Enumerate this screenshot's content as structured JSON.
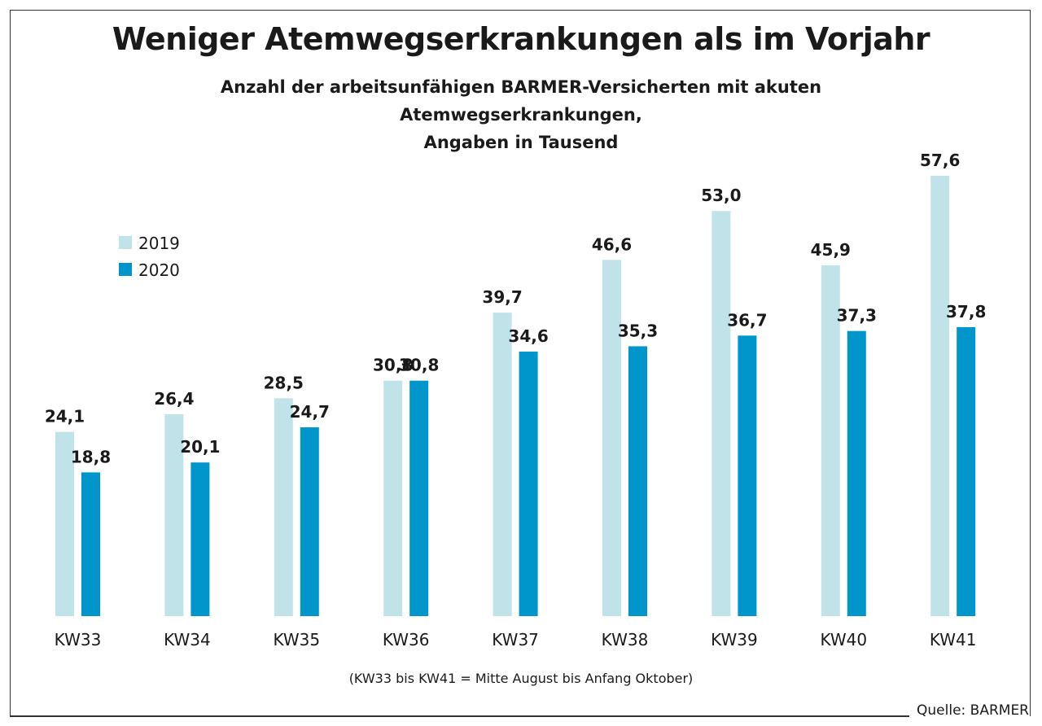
{
  "header": {
    "title": "Weniger Atemwegserkrankungen als im Vorjahr",
    "subtitle_line1": "Anzahl der arbeitsunfähigen BARMER-Versicherten mit akuten Atemwegserkrankungen,",
    "subtitle_line2": "Angaben in Tausend"
  },
  "footer": {
    "note": "(KW33 bis KW41 = Mitte August bis Anfang Oktober)",
    "source": "Quelle: BARMER"
  },
  "chart_data": {
    "type": "bar",
    "title": "Weniger Atemwegserkrankungen als im Vorjahr",
    "subtitle": "Anzahl der arbeitsunfähigen BARMER-Versicherten mit akuten Atemwegserkrankungen, Angaben in Tausend",
    "categories": [
      "KW33",
      "KW34",
      "KW35",
      "KW36",
      "KW37",
      "KW38",
      "KW39",
      "KW40",
      "KW41"
    ],
    "series": [
      {
        "name": "2019",
        "color": "#bfe3e8",
        "values": [
          24.1,
          26.4,
          28.5,
          30.8,
          39.7,
          46.6,
          53.0,
          45.9,
          57.6
        ],
        "labels": [
          "24,1",
          "26,4",
          "28,5",
          "30,8",
          "39,7",
          "46,6",
          "53,0",
          "45,9",
          "57,6"
        ]
      },
      {
        "name": "2020",
        "color": "#0096cc",
        "values": [
          18.8,
          20.1,
          24.7,
          30.8,
          34.6,
          35.3,
          36.7,
          37.3,
          37.8
        ],
        "labels": [
          "18,8",
          "20,1",
          "24,7",
          "30,8",
          "34,6",
          "35,3",
          "36,7",
          "37,3",
          "37,8"
        ]
      }
    ],
    "ylim": [
      0,
      57.6
    ],
    "legend_position": "top-left",
    "grid": false
  }
}
